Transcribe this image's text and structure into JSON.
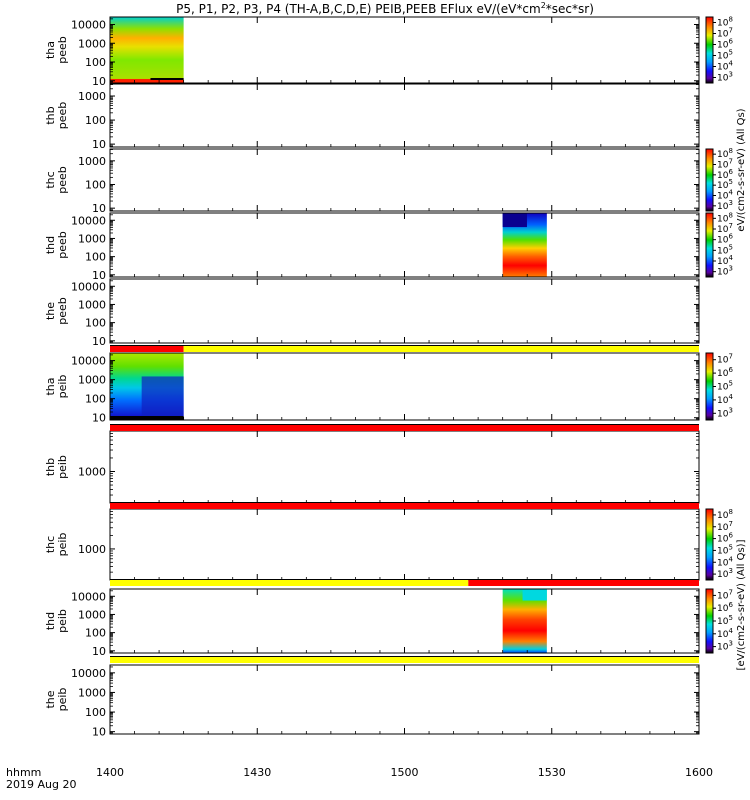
{
  "chart_data": {
    "type": "heatmap",
    "title": "P5, P1, P2, P3, P4 (TH-A,B,C,D,E) PEIB,PEEB EFlux eV/(eV*cm",
    "title_sup": "2",
    "title_tail": "*sec*sr)",
    "x_axis": {
      "range": [
        "1400",
        "1600"
      ],
      "ticks": [
        "1400",
        "1430",
        "1500",
        "1530",
        "1600"
      ],
      "label_line1": "hhmm",
      "label_line2": "2019 Aug 20"
    },
    "colorbar_scale": "log",
    "colorbar_labels": [
      "eV/(cm2-s-sr-eV) (All Qs)",
      "[eV/(cm2-s-sr-eV) (All Qs)]"
    ],
    "panels": [
      {
        "probe": "tha",
        "type": "peeb",
        "y_ticks": [
          "10",
          "100",
          "1000",
          "10000"
        ],
        "blocks": [
          {
            "start": "1400",
            "end": "1415",
            "kind": "peeb_low"
          }
        ],
        "colorbar": {
          "ticks": [
            "10^3",
            "10^4",
            "10^5",
            "10^6",
            "10^7",
            "10^8"
          ]
        }
      },
      {
        "probe": "thb",
        "type": "peeb",
        "y_ticks": [
          "10",
          "100",
          "1000"
        ],
        "blocks": []
      },
      {
        "probe": "thc",
        "type": "peeb",
        "y_ticks": [
          "10",
          "100",
          "1000"
        ],
        "blocks": [],
        "colorbar": {
          "ticks": [
            "10^3",
            "10^4",
            "10^5",
            "10^6",
            "10^7",
            "10^8"
          ]
        }
      },
      {
        "probe": "thd",
        "type": "peeb",
        "y_ticks": [
          "10",
          "100",
          "1000",
          "10000"
        ],
        "blocks": [
          {
            "start": "1520",
            "end": "1529",
            "kind": "peeb_high"
          }
        ],
        "colorbar": {
          "ticks": [
            "10^3",
            "10^4",
            "10^5",
            "10^6",
            "10^7",
            "10^8"
          ]
        }
      },
      {
        "probe": "the",
        "type": "peeb",
        "y_ticks": [
          "10",
          "100",
          "1000",
          "10000"
        ],
        "blocks": []
      },
      {
        "probe": "tha",
        "type": "peib",
        "y_ticks": [
          "10",
          "100",
          "1000",
          "10000"
        ],
        "blocks": [
          {
            "start": "1400",
            "end": "1415",
            "kind": "peib_low"
          }
        ],
        "colorbar": {
          "ticks": [
            "10^3",
            "10^4",
            "10^5",
            "10^6",
            "10^7"
          ]
        }
      },
      {
        "probe": "thb",
        "type": "peib",
        "y_ticks": [
          "1000"
        ],
        "blocks": []
      },
      {
        "probe": "thc",
        "type": "peib",
        "y_ticks": [
          "1000"
        ],
        "blocks": [],
        "colorbar": {
          "ticks": [
            "10^3",
            "10^4",
            "10^5",
            "10^6",
            "10^7",
            "10^8"
          ]
        }
      },
      {
        "probe": "thd",
        "type": "peib",
        "y_ticks": [
          "10",
          "100",
          "1000",
          "10000"
        ],
        "blocks": [
          {
            "start": "1520",
            "end": "1529",
            "kind": "peib_high"
          }
        ],
        "colorbar": {
          "ticks": [
            "10^3",
            "10^4",
            "10^5",
            "10^6",
            "10^7"
          ]
        }
      },
      {
        "probe": "the",
        "type": "peib",
        "y_ticks": [
          "10",
          "100",
          "1000",
          "10000"
        ],
        "blocks": []
      }
    ],
    "mode_bars": [
      {
        "segments": [
          {
            "start": "1400",
            "end": "1415",
            "color": "#ff0000"
          },
          {
            "start": "1415",
            "end": "1600",
            "color": "#ffff00"
          }
        ]
      },
      {
        "segments": [
          {
            "start": "1400",
            "end": "1600",
            "color": "#ff0000"
          }
        ]
      },
      {
        "segments": [
          {
            "start": "1400",
            "end": "1600",
            "color": "#ff0000"
          }
        ]
      },
      {
        "segments": [
          {
            "start": "1400",
            "end": "1513",
            "color": "#ffff00"
          },
          {
            "start": "1513",
            "end": "1600",
            "color": "#ff0000"
          }
        ]
      },
      {
        "segments": [
          {
            "start": "1400",
            "end": "1600",
            "color": "#ffff00"
          }
        ]
      }
    ]
  }
}
